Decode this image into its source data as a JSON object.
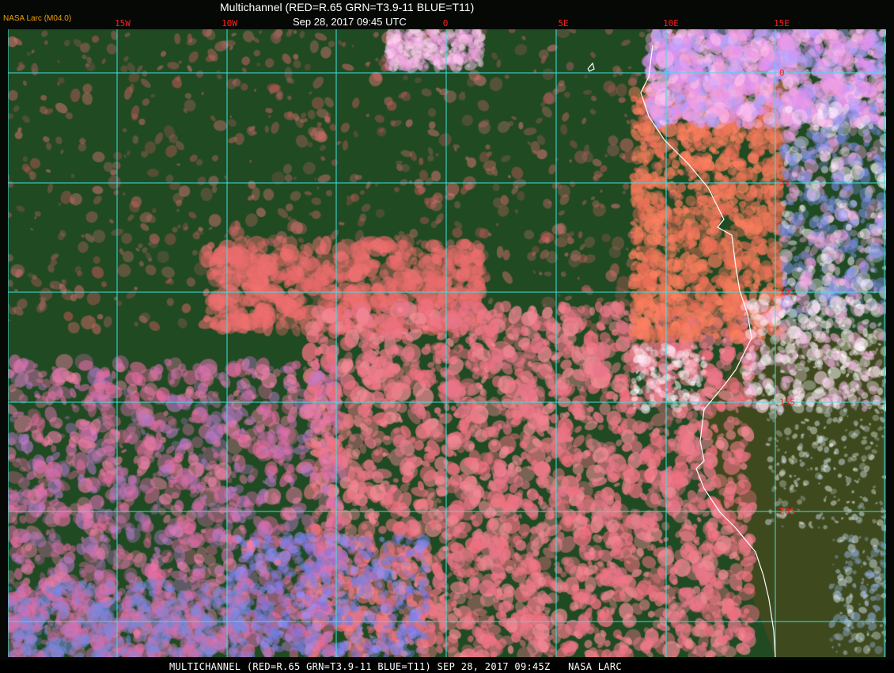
{
  "header": {
    "title": "Multichannel (RED=R.65 GRN=T3.9-11 BLUE=T11)",
    "datetime": "Sep 28, 2017 09:45 UTC",
    "logo": "NASA Larc (M04.0)"
  },
  "grid": {
    "longitude_labels": [
      "15W",
      "10W",
      "0",
      "5E",
      "10E",
      "15E"
    ],
    "latitude_labels": [
      "0",
      "5S",
      "10S",
      "15S",
      "20S"
    ],
    "grid_color": "#40e0e0",
    "label_color": "#ff2020",
    "coastline_color": "#ffffff"
  },
  "footer": {
    "caption": "MULTICHANNEL (RED=R.65 GRN=T3.9-11 BLUE=T11) SEP 28, 2017 09:45Z   NASA LARC"
  }
}
